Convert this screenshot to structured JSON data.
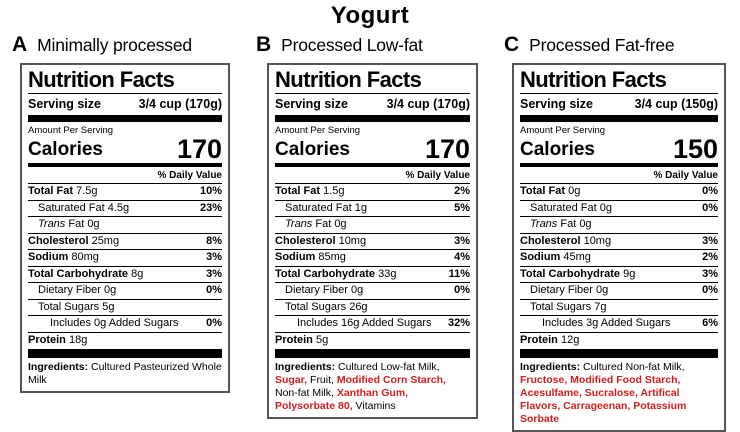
{
  "page_title": "Yogurt",
  "colors": {
    "additive_red": "#d41c1c"
  },
  "panels": [
    {
      "letter": "A",
      "label": "Minimally processed",
      "nf": {
        "heading": "Nutrition Facts",
        "serving_label": "Serving size",
        "serving_value": "3/4 cup (170g)",
        "amount_per_serving": "Amount Per Serving",
        "calories_label": "Calories",
        "calories_value": "170",
        "dv_header": "% Daily Value"
      },
      "rows": [
        {
          "b": "Total Fat",
          "i": "",
          "r": " 7.5g",
          "dv": "10%",
          "indent": 0
        },
        {
          "b": "",
          "i": "",
          "r": "Saturated Fat 4.5g",
          "dv": "23%",
          "indent": 1
        },
        {
          "b": "",
          "i": "Trans",
          "r": " Fat 0g",
          "dv": "",
          "indent": 1
        },
        {
          "b": "Cholesterol",
          "i": "",
          "r": " 25mg",
          "dv": "8%",
          "indent": 0
        },
        {
          "b": "Sodium",
          "i": "",
          "r": " 80mg",
          "dv": "3%",
          "indent": 0
        },
        {
          "b": "Total Carbohydrate",
          "i": "",
          "r": " 8g",
          "dv": "3%",
          "indent": 0
        },
        {
          "b": "",
          "i": "",
          "r": "Dietary Fiber 0g",
          "dv": "0%",
          "indent": 1
        },
        {
          "b": "",
          "i": "",
          "r": "Total Sugars 5g",
          "dv": "",
          "indent": 1
        },
        {
          "b": "",
          "i": "",
          "r": "Includes 0g Added Sugars",
          "dv": "0%",
          "indent": 2
        },
        {
          "b": "Protein",
          "i": "",
          "r": " 18g",
          "dv": "",
          "indent": 0
        }
      ],
      "ingredients_label": "Ingredients:",
      "ingredients": [
        {
          "text": " Cultured Pasteurized Whole Milk",
          "red": false
        }
      ]
    },
    {
      "letter": "B",
      "label": "Processed Low-fat",
      "nf": {
        "heading": "Nutrition Facts",
        "serving_label": "Serving size",
        "serving_value": "3/4 cup (170g)",
        "amount_per_serving": "Amount Per Serving",
        "calories_label": "Calories",
        "calories_value": "170",
        "dv_header": "% Daily Value"
      },
      "rows": [
        {
          "b": "Total Fat",
          "i": "",
          "r": " 1.5g",
          "dv": "2%",
          "indent": 0
        },
        {
          "b": "",
          "i": "",
          "r": "Saturated Fat 1g",
          "dv": "5%",
          "indent": 1
        },
        {
          "b": "",
          "i": "Trans",
          "r": " Fat 0g",
          "dv": "",
          "indent": 1
        },
        {
          "b": "Cholesterol",
          "i": "",
          "r": " 10mg",
          "dv": "3%",
          "indent": 0
        },
        {
          "b": "Sodium",
          "i": "",
          "r": " 85mg",
          "dv": "4%",
          "indent": 0
        },
        {
          "b": "Total Carbohydrate",
          "i": "",
          "r": " 33g",
          "dv": "11%",
          "indent": 0
        },
        {
          "b": "",
          "i": "",
          "r": "Dietary Fiber 0g",
          "dv": "0%",
          "indent": 1
        },
        {
          "b": "",
          "i": "",
          "r": "Total Sugars 26g",
          "dv": "",
          "indent": 1
        },
        {
          "b": "",
          "i": "",
          "r": "Includes 16g Added Sugars",
          "dv": "32%",
          "indent": 2
        },
        {
          "b": "Protein",
          "i": "",
          "r": " 5g",
          "dv": "",
          "indent": 0
        }
      ],
      "ingredients_label": "Ingredients:",
      "ingredients": [
        {
          "text": " Cultured Low-fat Milk, ",
          "red": false
        },
        {
          "text": "Sugar,",
          "red": true
        },
        {
          "text": " Fruit, ",
          "red": false
        },
        {
          "text": "Modified Corn Starch,",
          "red": true
        },
        {
          "text": " Non-fat Milk, ",
          "red": false
        },
        {
          "text": "Xanthan Gum,",
          "red": true
        },
        {
          "text": " ",
          "red": false
        },
        {
          "text": "Polysorbate 80,",
          "red": true
        },
        {
          "text": " Vitamins",
          "red": false
        }
      ]
    },
    {
      "letter": "C",
      "label": "Processed Fat-free",
      "nf": {
        "heading": "Nutrition Facts",
        "serving_label": "Serving size",
        "serving_value": "3/4 cup (150g)",
        "amount_per_serving": "Amount Per Serving",
        "calories_label": "Calories",
        "calories_value": "150",
        "dv_header": "% Daily Value"
      },
      "rows": [
        {
          "b": "Total Fat",
          "i": "",
          "r": " 0g",
          "dv": "0%",
          "indent": 0
        },
        {
          "b": "",
          "i": "",
          "r": "Saturated Fat 0g",
          "dv": "0%",
          "indent": 1
        },
        {
          "b": "",
          "i": "Trans",
          "r": " Fat 0g",
          "dv": "",
          "indent": 1
        },
        {
          "b": "Cholesterol",
          "i": "",
          "r": " 10mg",
          "dv": "3%",
          "indent": 0
        },
        {
          "b": "Sodium",
          "i": "",
          "r": " 45mg",
          "dv": "2%",
          "indent": 0
        },
        {
          "b": "Total Carbohydrate",
          "i": "",
          "r": " 9g",
          "dv": "3%",
          "indent": 0
        },
        {
          "b": "",
          "i": "",
          "r": "Dietary Fiber 0g",
          "dv": "0%",
          "indent": 1
        },
        {
          "b": "",
          "i": "",
          "r": "Total Sugars 7g",
          "dv": "",
          "indent": 1
        },
        {
          "b": "",
          "i": "",
          "r": "Includes 3g Added Sugars",
          "dv": "6%",
          "indent": 2
        },
        {
          "b": "Protein",
          "i": "",
          "r": " 12g",
          "dv": "",
          "indent": 0
        }
      ],
      "ingredients_label": "Ingredients:",
      "ingredients": [
        {
          "text": " Cultured Non-fat Milk, ",
          "red": false
        },
        {
          "text": "Fructose, Modified Food Starch, Acesulfame, Sucralose, Artifical Flavors, Carrageenan, Potassium Sorbate",
          "red": true
        }
      ]
    }
  ]
}
